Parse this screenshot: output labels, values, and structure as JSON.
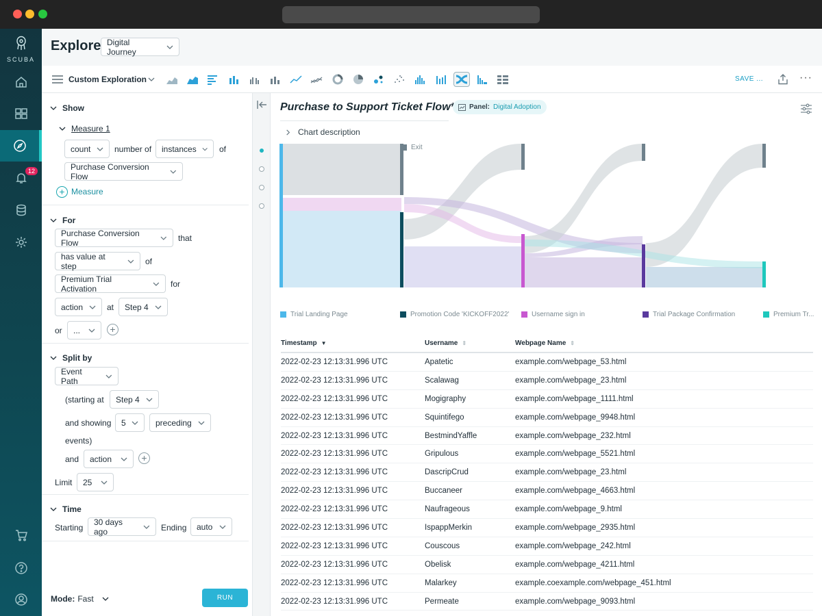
{
  "app": {
    "logo_text": "SCUBA"
  },
  "nav": {
    "notification_count": "12"
  },
  "header": {
    "title": "Explore",
    "dataset": "Digital Journey"
  },
  "toolbar": {
    "exploration_label": "Custom Exploration",
    "save_label": "SAVE ...",
    "more_label": "···",
    "chart_types": [
      "area-chart-icon",
      "stacked-area-icon",
      "horizontal-bar-icon",
      "bar-chart-icon",
      "grouped-bar-icon",
      "stacked-bar-icon",
      "line-chart-icon",
      "multi-line-icon",
      "donut-chart-icon",
      "pie-chart-icon",
      "bubble-chart-icon",
      "scatter-plot-icon",
      "histogram-icon",
      "timeline-bar-icon",
      "sankey-flow-icon",
      "distribution-icon",
      "table-icon"
    ],
    "active_chart_type": "sankey-flow-icon"
  },
  "query": {
    "show": {
      "heading": "Show",
      "measure_name": "Measure 1",
      "aggregate": "count",
      "number_of": "number of",
      "unit": "instances",
      "of": "of",
      "flow": "Purchase Conversion Flow",
      "add_measure": "Measure"
    },
    "for": {
      "heading": "For",
      "flow": "Purchase Conversion Flow",
      "that": "that",
      "condition": "has value at step",
      "of": "of",
      "value": "Premium Trial Activation",
      "for_word": "for",
      "property": "action",
      "at": "at",
      "step": "Step 4",
      "or": "or",
      "or_value": "..."
    },
    "split_by": {
      "heading": "Split by",
      "field": "Event Path",
      "starting_at": "(starting at",
      "start_step": "Step 4",
      "and_showing": "and showing",
      "count": "5",
      "direction": "preceding",
      "events": "events)",
      "and": "and",
      "property": "action",
      "limit_label": "Limit",
      "limit": "25"
    },
    "time": {
      "heading": "Time",
      "starting_label": "Starting",
      "starting": "30 days ago",
      "ending_label": "Ending",
      "ending": "auto"
    },
    "mode_label": "Mode:",
    "mode_value": "Fast",
    "run_label": "RUN"
  },
  "chart": {
    "title": "Purchase to Support Ticket Flow*",
    "panel_label": "Panel:",
    "panel_value": "Digital Adoption",
    "description_label": "Chart description",
    "exit_label": "Exit"
  },
  "chart_data": {
    "type": "sankey",
    "nodes": [
      {
        "name": "Trial Landing Page",
        "color": "#4db8ea"
      },
      {
        "name": "Promotion Code 'KICKOFF2022'",
        "color": "#0d4d5e"
      },
      {
        "name": "Username sign in",
        "color": "#c858d0"
      },
      {
        "name": "Trial Package Confirmation",
        "color": "#5a3a9e"
      },
      {
        "name": "Premium Tr...",
        "color": "#1fc8bd"
      },
      {
        "name": "Exit",
        "color": "#6f818c"
      }
    ],
    "legend": [
      "Exit",
      "Trial Landing Page",
      "Promotion Code 'KICKOFF2022'",
      "Username sign in",
      "Trial Package Confirmation",
      "Premium Tr..."
    ]
  },
  "table": {
    "columns": [
      "Timestamp",
      "Username",
      "Webpage Name"
    ],
    "rows": [
      [
        "2022-02-23 12:13:31.996 UTC",
        "Apatetic",
        "example.com/webpage_53.html"
      ],
      [
        "2022-02-23 12:13:31.996 UTC",
        "Scalawag",
        "example.com/webpage_23.html"
      ],
      [
        "2022-02-23 12:13:31.996 UTC",
        "Mogigraphy",
        "example.com/webpage_1111.html"
      ],
      [
        "2022-02-23 12:13:31.996 UTC",
        "Squintifego",
        "example.com/webpage_9948.html"
      ],
      [
        "2022-02-23 12:13:31.996 UTC",
        "BestmindYaffle",
        "example.com/webpage_232.html"
      ],
      [
        "2022-02-23 12:13:31.996 UTC",
        "Gripulous",
        "example.com/webpage_5521.html"
      ],
      [
        "2022-02-23 12:13:31.996 UTC",
        "DascripCrud",
        "example.com/webpage_23.html"
      ],
      [
        "2022-02-23 12:13:31.996 UTC",
        "Buccaneer",
        "example.com/webpage_4663.html"
      ],
      [
        "2022-02-23 12:13:31.996 UTC",
        "Naufrageous",
        "example.com/webpage_9.html"
      ],
      [
        "2022-02-23 12:13:31.996 UTC",
        "IspappMerkin",
        "example.com/webpage_2935.html"
      ],
      [
        "2022-02-23 12:13:31.996 UTC",
        "Couscous",
        "example.com/webpage_242.html"
      ],
      [
        "2022-02-23 12:13:31.996 UTC",
        "Obelisk",
        "example.com/webpage_4211.html"
      ],
      [
        "2022-02-23 12:13:31.996 UTC",
        "Malarkey",
        "example.coexample.com/webpage_451.html"
      ],
      [
        "2022-02-23 12:13:31.996 UTC",
        "Permeate",
        "example.com/webpage_9093.html"
      ]
    ]
  }
}
